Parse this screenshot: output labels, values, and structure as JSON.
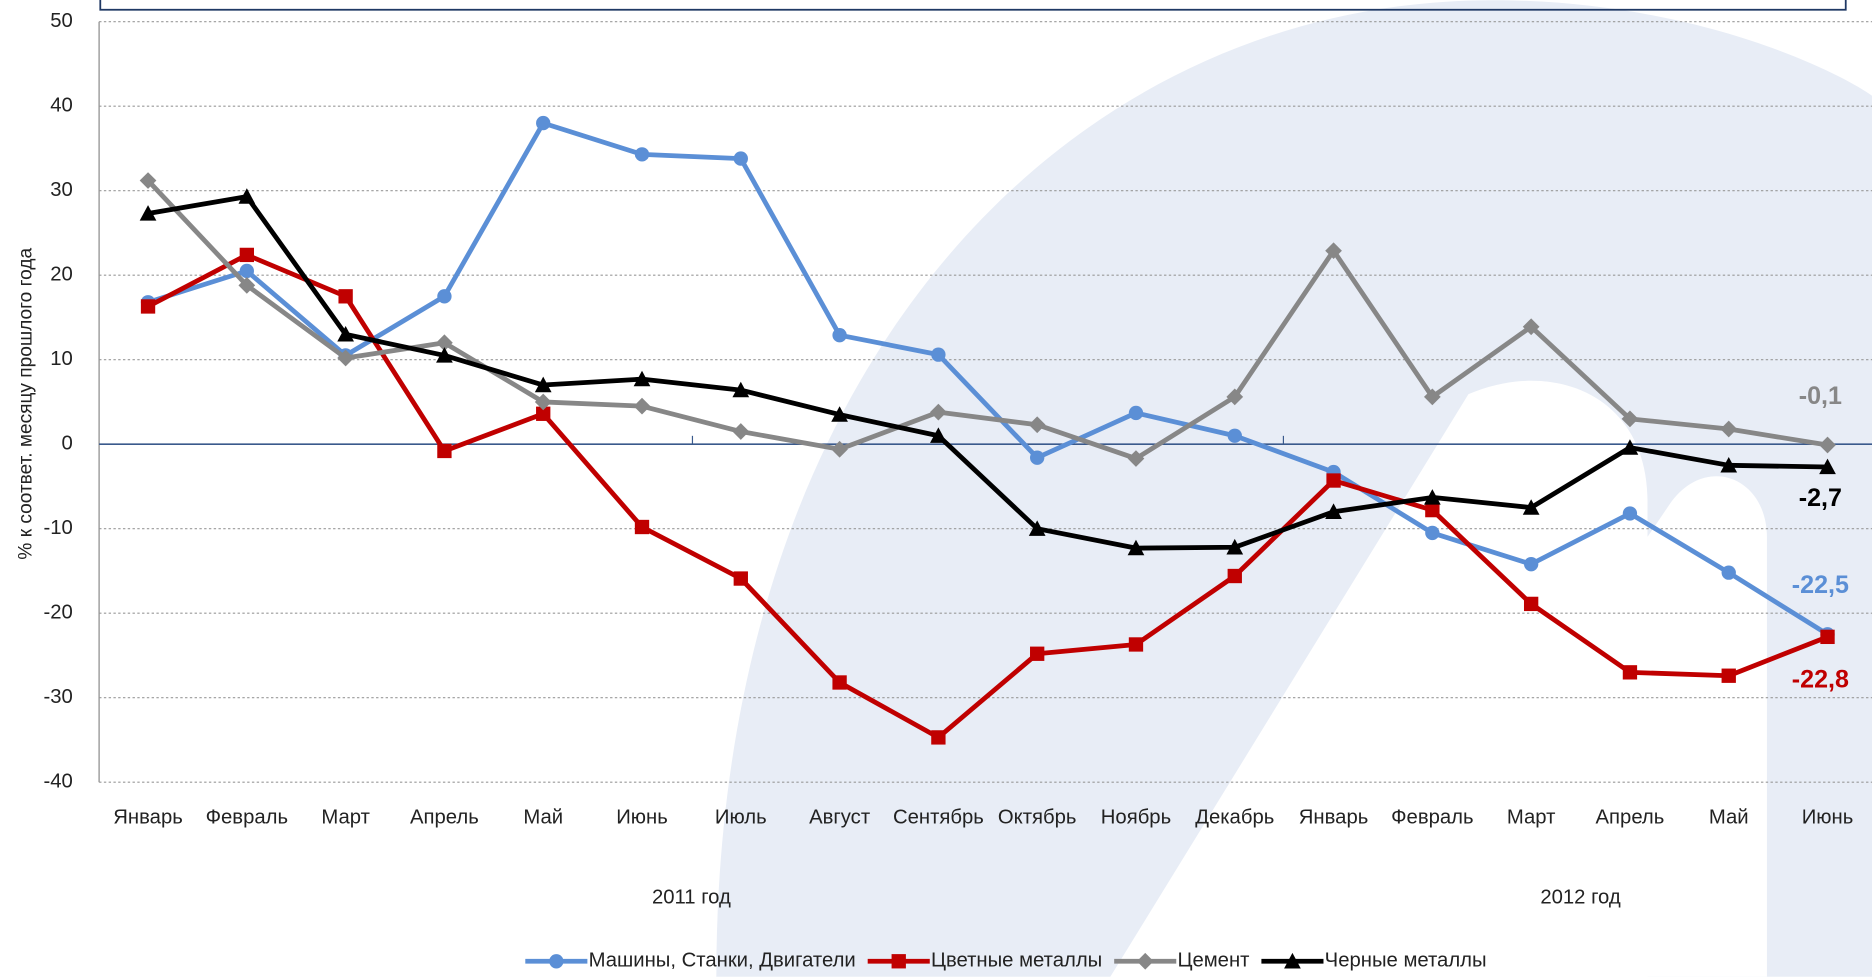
{
  "chart_data": {
    "type": "line",
    "y_label": "% к соответ. месяцу прошлого года",
    "categories": [
      "Январь",
      "Февраль",
      "Март",
      "Апрель",
      "Май",
      "Июнь",
      "Июль",
      "Август",
      "Сентябрь",
      "Октябрь",
      "Ноябрь",
      "Декабрь",
      "Январь",
      "Февраль",
      "Март",
      "Апрель",
      "Май",
      "Июнь"
    ],
    "group_labels": [
      "2011 год",
      "2012 год"
    ],
    "ylim": [
      -40,
      50
    ],
    "yticks": [
      -40,
      -30,
      -20,
      -10,
      0,
      10,
      20,
      30,
      40,
      50
    ],
    "grid": true,
    "legend": "bottom",
    "series": [
      {
        "name": "Машины, Станки, Двигатели",
        "color": "#5b8fd6",
        "marker": "circle",
        "values": [
          16.8,
          20.5,
          10.5,
          17.5,
          38.0,
          34.3,
          33.8,
          12.9,
          10.6,
          -1.6,
          3.7,
          1.0,
          -3.3,
          -10.5,
          -14.2,
          -8.2,
          -15.2,
          -22.5
        ],
        "value_labels": [
          null,
          null,
          null,
          null,
          null,
          null,
          null,
          null,
          null,
          null,
          null,
          null,
          null,
          null,
          null,
          null,
          null,
          "-22,5"
        ]
      },
      {
        "name": "Цветные металлы",
        "color": "#c00000",
        "marker": "square",
        "values": [
          16.3,
          22.4,
          17.5,
          -0.8,
          3.6,
          -9.8,
          -15.9,
          -28.2,
          -34.7,
          -24.8,
          -23.7,
          -15.6,
          -4.3,
          -7.8,
          -18.9,
          -27.0,
          -27.4,
          -22.8
        ],
        "value_labels": [
          null,
          null,
          null,
          null,
          null,
          null,
          null,
          null,
          null,
          null,
          null,
          null,
          null,
          null,
          null,
          null,
          null,
          "-22,8"
        ]
      },
      {
        "name": "Цемент",
        "color": "#878787",
        "marker": "diamond",
        "values": [
          31.2,
          18.8,
          10.2,
          12.0,
          5.0,
          4.5,
          1.5,
          -0.6,
          3.8,
          2.3,
          -1.7,
          5.6,
          22.9,
          5.6,
          13.9,
          3.0,
          1.8,
          -0.1
        ],
        "value_labels": [
          null,
          null,
          null,
          null,
          null,
          null,
          null,
          null,
          null,
          null,
          null,
          null,
          null,
          null,
          null,
          null,
          null,
          "-0,1"
        ]
      },
      {
        "name": "Черные металлы",
        "color": "#000000",
        "marker": "triangle",
        "values": [
          27.3,
          29.3,
          13.0,
          10.5,
          7.0,
          7.7,
          6.4,
          3.5,
          1.0,
          -10.0,
          -12.3,
          -12.2,
          -8.0,
          -6.3,
          -7.5,
          -0.4,
          -2.5,
          -2.7
        ],
        "value_labels": [
          null,
          null,
          null,
          null,
          null,
          null,
          null,
          null,
          null,
          null,
          null,
          null,
          null,
          null,
          null,
          null,
          null,
          "-2,7"
        ]
      }
    ]
  }
}
